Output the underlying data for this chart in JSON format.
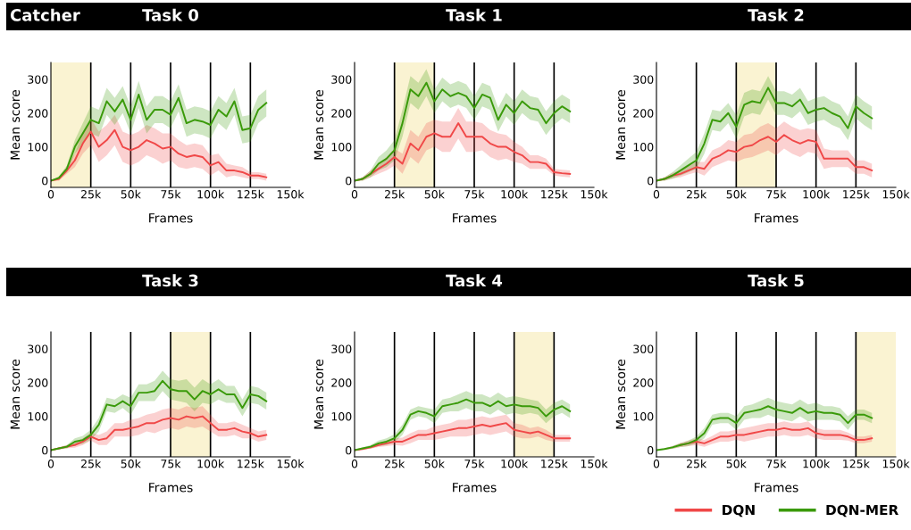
{
  "chart_data": [
    {
      "type": "line",
      "title": "Task 0",
      "annotations": [
        "Catcher"
      ],
      "xlabel": "Frames",
      "ylabel": "Mean score",
      "x": [
        0,
        5000,
        10000,
        15000,
        20000,
        25000,
        30000,
        35000,
        40000,
        45000,
        50000,
        55000,
        60000,
        65000,
        70000,
        75000,
        80000,
        85000,
        90000,
        95000,
        100000,
        105000,
        110000,
        115000,
        120000,
        125000,
        130000,
        135000
      ],
      "xlim": [
        0,
        150000
      ],
      "xticks": [
        0,
        {
          "value": 25000,
          "label": "25k"
        },
        {
          "value": 50000,
          "label": "50k"
        },
        {
          "value": 75000,
          "label": "75k"
        },
        {
          "value": 100000,
          "label": "100k"
        },
        {
          "value": 125000,
          "label": "125k"
        },
        {
          "value": 150000,
          "label": "150k"
        }
      ],
      "ylim": [
        -20,
        350
      ],
      "yticks": [
        0,
        100,
        200,
        300
      ],
      "grid": false,
      "legend": false,
      "ref_lines": [
        {
          "axis": "x",
          "value": 25000,
          "color": "#000000"
        },
        {
          "axis": "x",
          "value": 50000,
          "color": "#000000"
        },
        {
          "axis": "x",
          "value": 75000,
          "color": "#000000"
        },
        {
          "axis": "x",
          "value": 100000,
          "color": "#000000"
        },
        {
          "axis": "x",
          "value": 125000,
          "color": "#000000"
        }
      ],
      "bands": [
        {
          "axis": "x",
          "from": 0,
          "to": 25000,
          "color": "#faf3d2"
        }
      ],
      "series": [
        {
          "color": "#f04848",
          "values": [
            0,
            5,
            30,
            60,
            110,
            145,
            100,
            120,
            150,
            100,
            90,
            100,
            120,
            110,
            95,
            100,
            80,
            70,
            75,
            70,
            45,
            55,
            30,
            30,
            25,
            15,
            15,
            10
          ],
          "lower": [
            0,
            0,
            20,
            40,
            80,
            105,
            55,
            75,
            105,
            55,
            45,
            55,
            75,
            65,
            50,
            60,
            40,
            35,
            40,
            35,
            15,
            30,
            10,
            15,
            10,
            5,
            5,
            0
          ],
          "upper": [
            0,
            10,
            40,
            80,
            140,
            185,
            145,
            165,
            195,
            145,
            135,
            145,
            165,
            155,
            140,
            140,
            120,
            105,
            110,
            105,
            75,
            80,
            50,
            45,
            40,
            25,
            25,
            20
          ]
        },
        {
          "color": "#3a9a0a",
          "values": [
            0,
            8,
            35,
            100,
            140,
            180,
            170,
            235,
            205,
            240,
            180,
            255,
            180,
            210,
            210,
            195,
            245,
            170,
            180,
            175,
            165,
            210,
            190,
            235,
            150,
            155,
            210,
            230
          ],
          "lower": [
            0,
            3,
            25,
            80,
            110,
            140,
            130,
            195,
            165,
            200,
            140,
            215,
            140,
            170,
            170,
            155,
            205,
            130,
            140,
            135,
            125,
            170,
            150,
            195,
            110,
            115,
            170,
            190
          ],
          "upper": [
            0,
            13,
            45,
            120,
            170,
            220,
            210,
            275,
            245,
            280,
            220,
            295,
            220,
            250,
            250,
            235,
            285,
            210,
            220,
            215,
            205,
            250,
            230,
            275,
            190,
            195,
            250,
            270
          ]
        }
      ]
    },
    {
      "type": "line",
      "title": "Task 1",
      "xlabel": "Frames",
      "ylabel": "Mean score",
      "x": [
        0,
        5000,
        10000,
        15000,
        20000,
        25000,
        30000,
        35000,
        40000,
        45000,
        50000,
        55000,
        60000,
        65000,
        70000,
        75000,
        80000,
        85000,
        90000,
        95000,
        100000,
        105000,
        110000,
        115000,
        120000,
        125000,
        130000,
        135000
      ],
      "xlim": [
        0,
        150000
      ],
      "xticks": [
        0,
        {
          "value": 25000,
          "label": "25k"
        },
        {
          "value": 50000,
          "label": "50k"
        },
        {
          "value": 75000,
          "label": "75k"
        },
        {
          "value": 100000,
          "label": "100k"
        },
        {
          "value": 125000,
          "label": "125k"
        },
        {
          "value": 150000,
          "label": "150k"
        }
      ],
      "ylim": [
        -20,
        350
      ],
      "yticks": [
        0,
        100,
        200,
        300
      ],
      "grid": false,
      "legend": false,
      "ref_lines": [
        {
          "axis": "x",
          "value": 25000,
          "color": "#000000"
        },
        {
          "axis": "x",
          "value": 50000,
          "color": "#000000"
        },
        {
          "axis": "x",
          "value": 75000,
          "color": "#000000"
        },
        {
          "axis": "x",
          "value": 100000,
          "color": "#000000"
        },
        {
          "axis": "x",
          "value": 125000,
          "color": "#000000"
        }
      ],
      "bands": [
        {
          "axis": "x",
          "from": 25000,
          "to": 50000,
          "color": "#faf3d2"
        }
      ],
      "series": [
        {
          "color": "#f04848",
          "values": [
            0,
            5,
            20,
            35,
            50,
            70,
            50,
            110,
            90,
            130,
            140,
            130,
            130,
            170,
            130,
            130,
            130,
            110,
            100,
            100,
            85,
            75,
            55,
            55,
            50,
            25,
            22,
            20
          ],
          "lower": [
            0,
            0,
            10,
            20,
            30,
            45,
            20,
            70,
            50,
            90,
            100,
            85,
            85,
            125,
            85,
            85,
            90,
            70,
            60,
            65,
            55,
            50,
            35,
            35,
            35,
            15,
            12,
            10
          ],
          "upper": [
            0,
            10,
            30,
            50,
            70,
            95,
            80,
            150,
            130,
            170,
            180,
            175,
            175,
            215,
            175,
            175,
            170,
            150,
            140,
            135,
            115,
            100,
            75,
            75,
            65,
            35,
            32,
            30
          ]
        },
        {
          "color": "#3a9a0a",
          "values": [
            0,
            5,
            20,
            50,
            65,
            90,
            170,
            270,
            250,
            290,
            235,
            270,
            250,
            260,
            250,
            215,
            255,
            245,
            180,
            225,
            200,
            235,
            215,
            210,
            170,
            200,
            220,
            205
          ],
          "lower": [
            0,
            0,
            10,
            30,
            40,
            60,
            130,
            230,
            210,
            250,
            200,
            235,
            215,
            225,
            215,
            180,
            220,
            210,
            145,
            190,
            165,
            200,
            180,
            175,
            135,
            165,
            185,
            170
          ],
          "upper": [
            0,
            10,
            30,
            70,
            90,
            120,
            210,
            310,
            290,
            330,
            270,
            305,
            285,
            295,
            285,
            250,
            290,
            280,
            215,
            260,
            235,
            270,
            250,
            245,
            205,
            235,
            255,
            240
          ]
        }
      ]
    },
    {
      "type": "line",
      "title": "Task 2",
      "xlabel": "Frames",
      "ylabel": "Mean score",
      "x": [
        0,
        5000,
        10000,
        15000,
        20000,
        25000,
        30000,
        35000,
        40000,
        45000,
        50000,
        55000,
        60000,
        65000,
        70000,
        75000,
        80000,
        85000,
        90000,
        95000,
        100000,
        105000,
        110000,
        115000,
        120000,
        125000,
        130000,
        135000
      ],
      "xlim": [
        0,
        150000
      ],
      "xticks": [
        0,
        {
          "value": 25000,
          "label": "25k"
        },
        {
          "value": 50000,
          "label": "50k"
        },
        {
          "value": 75000,
          "label": "75k"
        },
        {
          "value": 100000,
          "label": "100k"
        },
        {
          "value": 125000,
          "label": "125k"
        },
        {
          "value": 150000,
          "label": "150k"
        }
      ],
      "ylim": [
        -20,
        350
      ],
      "yticks": [
        0,
        100,
        200,
        300
      ],
      "grid": false,
      "legend": false,
      "ref_lines": [
        {
          "axis": "x",
          "value": 25000,
          "color": "#000000"
        },
        {
          "axis": "x",
          "value": 50000,
          "color": "#000000"
        },
        {
          "axis": "x",
          "value": 75000,
          "color": "#000000"
        },
        {
          "axis": "x",
          "value": 100000,
          "color": "#000000"
        },
        {
          "axis": "x",
          "value": 125000,
          "color": "#000000"
        }
      ],
      "bands": [
        {
          "axis": "x",
          "from": 50000,
          "to": 75000,
          "color": "#faf3d2"
        }
      ],
      "series": [
        {
          "color": "#f04848",
          "values": [
            0,
            5,
            15,
            20,
            30,
            40,
            35,
            65,
            75,
            90,
            85,
            100,
            105,
            120,
            130,
            115,
            135,
            120,
            110,
            120,
            115,
            65,
            65,
            65,
            65,
            40,
            40,
            30
          ],
          "lower": [
            0,
            0,
            7,
            10,
            18,
            25,
            15,
            40,
            50,
            60,
            55,
            65,
            70,
            80,
            90,
            75,
            95,
            80,
            70,
            85,
            80,
            35,
            40,
            40,
            40,
            20,
            20,
            10
          ],
          "upper": [
            0,
            10,
            23,
            30,
            42,
            55,
            55,
            90,
            100,
            120,
            115,
            135,
            140,
            160,
            170,
            155,
            175,
            160,
            150,
            155,
            150,
            95,
            90,
            90,
            90,
            60,
            60,
            50
          ]
        },
        {
          "color": "#3a9a0a",
          "values": [
            0,
            5,
            15,
            30,
            45,
            60,
            110,
            180,
            175,
            200,
            160,
            225,
            235,
            230,
            275,
            230,
            230,
            220,
            240,
            200,
            210,
            215,
            200,
            190,
            155,
            220,
            200,
            185
          ],
          "lower": [
            0,
            0,
            5,
            15,
            25,
            35,
            80,
            150,
            145,
            170,
            125,
            190,
            200,
            195,
            240,
            195,
            195,
            185,
            205,
            165,
            175,
            180,
            165,
            155,
            120,
            185,
            165,
            150
          ],
          "upper": [
            0,
            10,
            25,
            45,
            65,
            85,
            140,
            210,
            205,
            230,
            195,
            260,
            270,
            265,
            310,
            265,
            265,
            255,
            275,
            235,
            245,
            250,
            235,
            225,
            190,
            255,
            235,
            220
          ]
        }
      ]
    },
    {
      "type": "line",
      "title": "Task 3",
      "xlabel": "Frames",
      "ylabel": "Mean score",
      "x": [
        0,
        5000,
        10000,
        15000,
        20000,
        25000,
        30000,
        35000,
        40000,
        45000,
        50000,
        55000,
        60000,
        65000,
        70000,
        75000,
        80000,
        85000,
        90000,
        95000,
        100000,
        105000,
        110000,
        115000,
        120000,
        125000,
        130000,
        135000
      ],
      "xlim": [
        0,
        150000
      ],
      "xticks": [
        0,
        {
          "value": 25000,
          "label": "25k"
        },
        {
          "value": 50000,
          "label": "50k"
        },
        {
          "value": 75000,
          "label": "75k"
        },
        {
          "value": 100000,
          "label": "100k"
        },
        {
          "value": 125000,
          "label": "125k"
        },
        {
          "value": 150000,
          "label": "150k"
        }
      ],
      "ylim": [
        -20,
        350
      ],
      "yticks": [
        0,
        100,
        200,
        300
      ],
      "grid": false,
      "legend": false,
      "ref_lines": [
        {
          "axis": "x",
          "value": 25000,
          "color": "#000000"
        },
        {
          "axis": "x",
          "value": 50000,
          "color": "#000000"
        },
        {
          "axis": "x",
          "value": 75000,
          "color": "#000000"
        },
        {
          "axis": "x",
          "value": 100000,
          "color": "#000000"
        },
        {
          "axis": "x",
          "value": 125000,
          "color": "#000000"
        }
      ],
      "bands": [
        {
          "axis": "x",
          "from": 75000,
          "to": 100000,
          "color": "#faf3d2"
        }
      ],
      "series": [
        {
          "color": "#f04848",
          "values": [
            0,
            5,
            10,
            15,
            25,
            40,
            30,
            35,
            60,
            60,
            65,
            70,
            80,
            80,
            90,
            95,
            90,
            100,
            95,
            100,
            80,
            60,
            60,
            65,
            55,
            50,
            40,
            45
          ],
          "lower": [
            0,
            2,
            5,
            7,
            15,
            28,
            15,
            15,
            40,
            40,
            40,
            45,
            55,
            50,
            60,
            65,
            60,
            70,
            65,
            70,
            55,
            40,
            40,
            45,
            35,
            35,
            25,
            30
          ],
          "upper": [
            0,
            8,
            15,
            23,
            35,
            52,
            45,
            55,
            80,
            80,
            90,
            95,
            105,
            110,
            120,
            125,
            120,
            130,
            125,
            130,
            105,
            80,
            80,
            85,
            75,
            65,
            55,
            60
          ]
        },
        {
          "color": "#3a9a0a",
          "values": [
            0,
            5,
            10,
            25,
            30,
            45,
            75,
            135,
            130,
            145,
            130,
            170,
            170,
            175,
            205,
            180,
            175,
            175,
            150,
            175,
            165,
            180,
            165,
            165,
            125,
            165,
            160,
            145
          ],
          "lower": [
            0,
            2,
            5,
            15,
            18,
            30,
            55,
            115,
            110,
            125,
            105,
            145,
            145,
            145,
            175,
            150,
            145,
            140,
            115,
            140,
            135,
            150,
            140,
            140,
            100,
            140,
            135,
            120
          ],
          "upper": [
            0,
            8,
            15,
            35,
            42,
            60,
            95,
            155,
            150,
            165,
            155,
            195,
            195,
            205,
            235,
            210,
            205,
            210,
            185,
            210,
            195,
            210,
            190,
            190,
            150,
            190,
            185,
            170
          ]
        }
      ]
    },
    {
      "type": "line",
      "title": "Task 4",
      "xlabel": "Frames",
      "ylabel": "Mean score",
      "x": [
        0,
        5000,
        10000,
        15000,
        20000,
        25000,
        30000,
        35000,
        40000,
        45000,
        50000,
        55000,
        60000,
        65000,
        70000,
        75000,
        80000,
        85000,
        90000,
        95000,
        100000,
        105000,
        110000,
        115000,
        120000,
        125000,
        130000,
        135000
      ],
      "xlim": [
        0,
        150000
      ],
      "xticks": [
        0,
        {
          "value": 25000,
          "label": "25k"
        },
        {
          "value": 50000,
          "label": "50k"
        },
        {
          "value": 75000,
          "label": "75k"
        },
        {
          "value": 100000,
          "label": "100k"
        },
        {
          "value": 125000,
          "label": "125k"
        },
        {
          "value": 150000,
          "label": "150k"
        }
      ],
      "ylim": [
        -20,
        350
      ],
      "yticks": [
        0,
        100,
        200,
        300
      ],
      "grid": false,
      "legend": false,
      "ref_lines": [
        {
          "axis": "x",
          "value": 25000,
          "color": "#000000"
        },
        {
          "axis": "x",
          "value": 50000,
          "color": "#000000"
        },
        {
          "axis": "x",
          "value": 75000,
          "color": "#000000"
        },
        {
          "axis": "x",
          "value": 100000,
          "color": "#000000"
        },
        {
          "axis": "x",
          "value": 125000,
          "color": "#000000"
        }
      ],
      "bands": [
        {
          "axis": "x",
          "from": 100000,
          "to": 125000,
          "color": "#faf3d2"
        }
      ],
      "series": [
        {
          "color": "#f04848",
          "values": [
            0,
            3,
            8,
            15,
            20,
            25,
            25,
            35,
            45,
            45,
            50,
            55,
            60,
            65,
            65,
            70,
            75,
            70,
            75,
            80,
            60,
            55,
            50,
            55,
            45,
            35,
            35,
            35
          ],
          "lower": [
            0,
            1,
            4,
            9,
            12,
            15,
            13,
            20,
            30,
            30,
            30,
            35,
            40,
            40,
            40,
            45,
            50,
            45,
            50,
            55,
            40,
            35,
            35,
            40,
            30,
            25,
            25,
            25
          ],
          "upper": [
            0,
            5,
            12,
            21,
            28,
            35,
            37,
            50,
            60,
            60,
            70,
            75,
            80,
            90,
            90,
            95,
            100,
            95,
            100,
            105,
            80,
            75,
            65,
            70,
            60,
            45,
            45,
            45
          ]
        },
        {
          "color": "#3a9a0a",
          "values": [
            0,
            5,
            10,
            20,
            25,
            35,
            60,
            105,
            115,
            110,
            100,
            130,
            135,
            140,
            150,
            140,
            140,
            130,
            145,
            130,
            135,
            130,
            130,
            125,
            100,
            120,
            130,
            115
          ],
          "lower": [
            0,
            2,
            5,
            12,
            15,
            23,
            45,
            90,
            100,
            95,
            80,
            110,
            115,
            115,
            125,
            115,
            115,
            105,
            120,
            105,
            110,
            105,
            110,
            105,
            80,
            100,
            110,
            95
          ],
          "upper": [
            0,
            8,
            15,
            28,
            35,
            47,
            75,
            120,
            130,
            125,
            120,
            150,
            155,
            165,
            175,
            165,
            165,
            155,
            170,
            155,
            160,
            155,
            150,
            145,
            120,
            140,
            150,
            135
          ]
        }
      ]
    },
    {
      "type": "line",
      "title": "Task 5",
      "xlabel": "Frames",
      "ylabel": "Mean score",
      "x": [
        0,
        5000,
        10000,
        15000,
        20000,
        25000,
        30000,
        35000,
        40000,
        45000,
        50000,
        55000,
        60000,
        65000,
        70000,
        75000,
        80000,
        85000,
        90000,
        95000,
        100000,
        105000,
        110000,
        115000,
        120000,
        125000,
        130000,
        135000
      ],
      "xlim": [
        0,
        150000
      ],
      "xticks": [
        0,
        {
          "value": 25000,
          "label": "25k"
        },
        {
          "value": 50000,
          "label": "50k"
        },
        {
          "value": 75000,
          "label": "75k"
        },
        {
          "value": 100000,
          "label": "100k"
        },
        {
          "value": 125000,
          "label": "125k"
        },
        {
          "value": 150000,
          "label": "150k"
        }
      ],
      "ylim": [
        -20,
        350
      ],
      "yticks": [
        0,
        100,
        200,
        300
      ],
      "grid": false,
      "legend": "bottom right",
      "ref_lines": [
        {
          "axis": "x",
          "value": 25000,
          "color": "#000000"
        },
        {
          "axis": "x",
          "value": 50000,
          "color": "#000000"
        },
        {
          "axis": "x",
          "value": 75000,
          "color": "#000000"
        },
        {
          "axis": "x",
          "value": 100000,
          "color": "#000000"
        },
        {
          "axis": "x",
          "value": 125000,
          "color": "#000000"
        }
      ],
      "bands": [
        {
          "axis": "x",
          "from": 125000,
          "to": 150000,
          "color": "#faf3d2"
        }
      ],
      "series": [
        {
          "name": "DQN",
          "color": "#f04848",
          "values": [
            null,
            null,
            null,
            15,
            20,
            25,
            20,
            30,
            40,
            40,
            45,
            45,
            50,
            55,
            60,
            60,
            65,
            60,
            60,
            65,
            50,
            45,
            45,
            45,
            40,
            30,
            30,
            35
          ],
          "lower": [
            0,
            1,
            4,
            9,
            12,
            15,
            10,
            18,
            25,
            25,
            30,
            25,
            30,
            35,
            40,
            40,
            45,
            40,
            40,
            45,
            35,
            30,
            30,
            30,
            28,
            20,
            20,
            25
          ],
          "upper": [
            0,
            5,
            12,
            21,
            28,
            35,
            30,
            42,
            55,
            55,
            60,
            65,
            70,
            75,
            80,
            80,
            85,
            80,
            80,
            85,
            65,
            60,
            60,
            60,
            52,
            40,
            40,
            45
          ]
        },
        {
          "name": "DQN-MER",
          "color": "#3a9a0a",
          "values": [
            0,
            3,
            8,
            15,
            20,
            30,
            50,
            90,
            95,
            95,
            80,
            110,
            115,
            120,
            130,
            120,
            115,
            110,
            125,
            110,
            115,
            110,
            110,
            105,
            80,
            105,
            105,
            95
          ],
          "lower": [
            0,
            1,
            4,
            9,
            12,
            20,
            35,
            75,
            80,
            80,
            60,
            90,
            95,
            95,
            105,
            95,
            90,
            85,
            100,
            85,
            90,
            90,
            90,
            85,
            60,
            90,
            90,
            80
          ],
          "upper": [
            0,
            5,
            12,
            21,
            28,
            40,
            65,
            105,
            110,
            110,
            100,
            130,
            135,
            145,
            155,
            145,
            140,
            135,
            150,
            135,
            140,
            130,
            130,
            125,
            100,
            120,
            120,
            110
          ]
        }
      ]
    }
  ]
}
